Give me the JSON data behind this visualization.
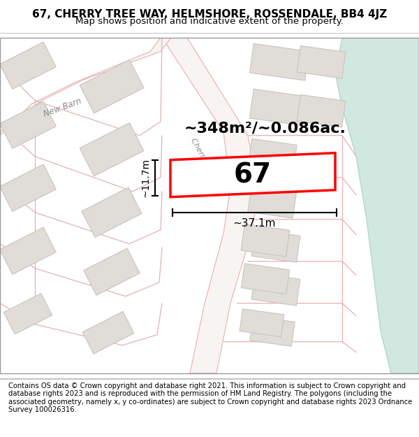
{
  "title_line1": "67, CHERRY TREE WAY, HELMSHORE, ROSSENDALE, BB4 4JZ",
  "title_line2": "Map shows position and indicative extent of the property.",
  "footer_text": "Contains OS data © Crown copyright and database right 2021. This information is subject to Crown copyright and database rights 2023 and is reproduced with the permission of HM Land Registry. The polygons (including the associated geometry, namely x, y co-ordinates) are subject to Crown copyright and database rights 2023 Ordnance Survey 100026316.",
  "map_bg": "#f7f4f1",
  "road_fill": "#f7f4f1",
  "road_edge": "#e8b0b0",
  "building_fill": "#e0ddd8",
  "building_edge": "#c8c4be",
  "highlight_fill": "#ffffff",
  "highlight_edge": "#ff0000",
  "water_fill": "#d0e8e0",
  "water_edge": "#b0d8cc",
  "street_color": "#c8a8a8",
  "property_label": "67",
  "area_label": "~348m²/~0.086ac.",
  "width_label": "~37.1m",
  "height_label": "~11.7m",
  "title_fontsize": 11,
  "subtitle_fontsize": 9.5,
  "footer_fontsize": 7.2,
  "label_fontsize": 28,
  "annot_fontsize": 16
}
